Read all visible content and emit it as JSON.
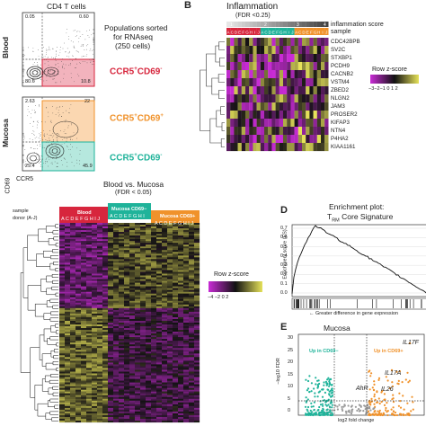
{
  "panelA": {
    "letter": "A",
    "title": "CD4 T cells",
    "sorted_text": [
      "Populations sorted",
      "for RNAseq",
      "(250 cells)"
    ],
    "blood_label": "Blood",
    "mucosa_label": "Mucosa",
    "x_axis": "CCR5",
    "y_axis": "CD69",
    "blood_quadrants": [
      "0.05",
      "0.60",
      "80.6",
      "10.8"
    ],
    "mucosa_quadrants": [
      "2.63",
      "22",
      "29.4",
      "45.9"
    ],
    "populations": [
      {
        "text": "CCR5",
        "sup": "+",
        "text2": "CD69",
        "sup2": "-",
        "color": "#d7263d"
      },
      {
        "text": "CCR5",
        "sup": "+",
        "text2": "CD69",
        "sup2": "+",
        "color": "#f0922b"
      },
      {
        "text": "CCR5",
        "sup": "+",
        "text2": "CD69",
        "sup2": "-",
        "color": "#1fb39a"
      }
    ]
  },
  "panelB": {
    "letter": "B",
    "title": "Inflammation",
    "subtitle": "(FDR <0.25)",
    "legend_rows": [
      "inflammation score",
      "sample"
    ],
    "group_numbers": [
      "1",
      "2",
      "3",
      "4"
    ],
    "sample_letters": [
      "A",
      "C",
      "D",
      "E",
      "F",
      "G",
      "H",
      "I",
      "J",
      "A",
      "C",
      "D",
      "E",
      "F",
      "G",
      "H",
      "I",
      "J",
      "A",
      "C",
      "D",
      "E",
      "F",
      "G",
      "H",
      "I",
      "J"
    ],
    "genes": [
      "CDC42BPB",
      "SV2C",
      "STXBP1",
      "PCDH9",
      "CACNB2",
      "VSTM4",
      "ZBED2",
      "NLGN2",
      "JAM3",
      "PROSER2",
      "KIFAP3",
      "NTN4",
      "P4HA2",
      "KIAA1161"
    ],
    "scale_title": "Row z-score",
    "scale_ticks": [
      "−3",
      "−2",
      "−1",
      "0",
      "1",
      "2"
    ]
  },
  "panelC": {
    "title": "Blood vs. Mucosa",
    "subtitle": "(FDR < 0.05)",
    "row_labels": [
      "sample",
      "donor (A-J)"
    ],
    "groups": [
      {
        "label": "Blood",
        "color": "#d7263d",
        "donors": "A C D E F G H I J"
      },
      {
        "label": "Mucosa CD69−",
        "color": "#1fb39a",
        "donors": "A C D E F G H I"
      },
      {
        "label": "Mucosa CD69+",
        "color": "#f0922b",
        "donors": "A C D E F G H I J"
      }
    ],
    "scale_title": "Row z-score",
    "scale_ticks": [
      "−4",
      "−2",
      "0",
      "2"
    ]
  },
  "panelD": {
    "letter": "D",
    "title": "Enrichment plot:",
    "subtitle_main": "T",
    "subtitle_sub": "RM",
    "subtitle_rest": " Core Signature",
    "ylabel": "Enrichment score (ES)",
    "yticks": [
      "0.7",
      "0.6",
      "0.5",
      "0.4",
      "0.3",
      "0.2",
      "0.1",
      "0.0"
    ],
    "footer": "← Greater difference in gene expression"
  },
  "panelE": {
    "letter": "E",
    "title": "Mucosa",
    "xlabel": "log2 fold change",
    "ylabel": "−log10 FDR",
    "yticks": [
      "30",
      "25",
      "20",
      "15",
      "10",
      "5",
      "0"
    ],
    "xticks": [
      "−5",
      "0",
      "5",
      "10"
    ],
    "up_left": "Up in CD69−",
    "up_right": "Up in CD69+",
    "labels": [
      "IL17F",
      "IL17A",
      "AhR",
      "IL26"
    ]
  }
}
